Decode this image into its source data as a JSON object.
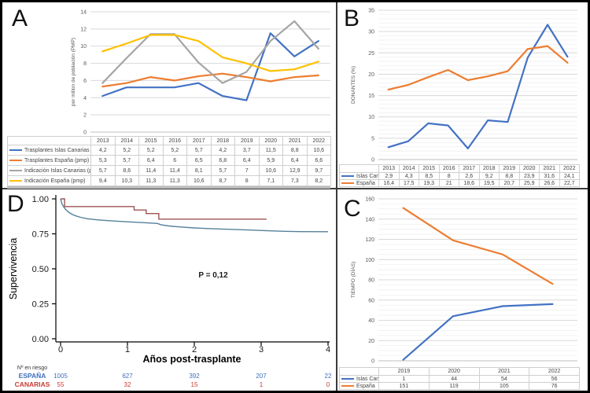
{
  "figure": {
    "panel_labels": {
      "a": "A",
      "b": "B",
      "c": "C",
      "d": "D"
    }
  },
  "colors": {
    "excel_blue": "#4472C4",
    "excel_orange": "#ED7D31",
    "excel_gray": "#A5A5A5",
    "excel_yellow": "#FFC000",
    "km_blue_curve": "#55809C",
    "km_red_curve": "#9D5353",
    "km_blue_label": "#3F6FBA",
    "km_red_label": "#CB3B31"
  },
  "chart_data": [
    {
      "id": "a",
      "type": "line",
      "title": "",
      "xlabel": "",
      "ylabel": "por millon de población (PMP)",
      "categories": [
        "2013",
        "2014",
        "2015",
        "2016",
        "2017",
        "2018",
        "2019",
        "2020",
        "2021",
        "2022"
      ],
      "ylim": [
        0,
        14
      ],
      "yticks": [
        0,
        2,
        4,
        6,
        8,
        10,
        12,
        14
      ],
      "grid": true,
      "legend_position": "table-left",
      "series": [
        {
          "name": "Trasplantes Islas Canarias (pmp)",
          "color": "#4472C4",
          "values": [
            4.2,
            5.2,
            5.2,
            5.2,
            5.7,
            4.2,
            3.7,
            11.5,
            8.8,
            10.6
          ]
        },
        {
          "name": "Trasplantes España (pmp)",
          "color": "#ED7D31",
          "values": [
            5.3,
            5.7,
            6.4,
            6,
            6.5,
            6.8,
            6.4,
            5.9,
            6.4,
            6.6
          ]
        },
        {
          "name": "Indicación Islas Canarias (pmp)",
          "color": "#A5A5A5",
          "values": [
            5.7,
            8.6,
            11.4,
            11.4,
            8.1,
            5.7,
            7,
            10.6,
            12.9,
            9.7
          ]
        },
        {
          "name": "Indicación España (pmp)",
          "color": "#FFC000",
          "values": [
            9.4,
            10.3,
            11.3,
            11.3,
            10.6,
            8.7,
            8,
            7.1,
            7.3,
            8.2
          ]
        }
      ]
    },
    {
      "id": "b",
      "type": "line",
      "title": "",
      "xlabel": "",
      "ylabel": "DONANTES (%)",
      "categories": [
        "2013",
        "2014",
        "2015",
        "2016",
        "2017",
        "2018",
        "2019",
        "2020",
        "2021",
        "2022"
      ],
      "ylim": [
        0,
        35
      ],
      "yticks": [
        0,
        5,
        10,
        15,
        20,
        25,
        30,
        35
      ],
      "minor_step": 1,
      "grid": true,
      "legend_position": "table-left",
      "series": [
        {
          "name": "Islas Canarias",
          "color": "#4472C4",
          "values": [
            2.9,
            4.3,
            8.5,
            8,
            2.6,
            9.2,
            8.8,
            23.9,
            31.6,
            24.1
          ]
        },
        {
          "name": "España",
          "color": "#ED7D31",
          "values": [
            16.4,
            17.5,
            19.3,
            21,
            18.6,
            19.5,
            20.7,
            25.9,
            26.6,
            22.7
          ]
        }
      ]
    },
    {
      "id": "c",
      "type": "line",
      "title": "",
      "xlabel": "",
      "ylabel": "TIEMPO (DÍAS)",
      "categories": [
        "2019",
        "2020",
        "2021",
        "2022"
      ],
      "ylim": [
        0,
        160
      ],
      "yticks": [
        0,
        20,
        40,
        60,
        80,
        100,
        120,
        140,
        160
      ],
      "minor_step": 5,
      "grid": true,
      "legend_position": "table-left",
      "series": [
        {
          "name": "Islas Canarias",
          "color": "#4472C4",
          "values": [
            1,
            44,
            54,
            56
          ]
        },
        {
          "name": "España",
          "color": "#ED7D31",
          "values": [
            151,
            119,
            105,
            76
          ]
        }
      ]
    },
    {
      "id": "d",
      "type": "line",
      "subtype": "kaplan-meier",
      "title": "",
      "xlabel": "Años post-trasplante",
      "ylabel": "Supervivencia",
      "xlim": [
        0,
        4
      ],
      "ylim": [
        0,
        1
      ],
      "xticks": [
        0,
        1,
        2,
        3,
        4
      ],
      "ytick_labels": [
        "0.00",
        "0.25",
        "0.50",
        "0.75",
        "1.00"
      ],
      "annotation": "P = 0,12",
      "grid": false,
      "series": [
        {
          "name": "ESPAÑA",
          "color": "#55809C",
          "points": [
            [
              0,
              1
            ],
            [
              0.02,
              0.965
            ],
            [
              0.05,
              0.94
            ],
            [
              0.08,
              0.922
            ],
            [
              0.12,
              0.905
            ],
            [
              0.17,
              0.89
            ],
            [
              0.23,
              0.878
            ],
            [
              0.3,
              0.868
            ],
            [
              0.4,
              0.858
            ],
            [
              0.55,
              0.85
            ],
            [
              0.75,
              0.843
            ],
            [
              1,
              0.836
            ],
            [
              1.25,
              0.83
            ],
            [
              1.45,
              0.824
            ],
            [
              1.5,
              0.815
            ],
            [
              1.62,
              0.806
            ],
            [
              1.8,
              0.799
            ],
            [
              2,
              0.792
            ],
            [
              2.25,
              0.787
            ],
            [
              2.55,
              0.782
            ],
            [
              2.85,
              0.777
            ],
            [
              3.1,
              0.772
            ],
            [
              3.35,
              0.768
            ],
            [
              3.6,
              0.766
            ],
            [
              4,
              0.765
            ]
          ]
        },
        {
          "name": "CANARIAS",
          "color": "#9D5353",
          "points": [
            [
              0,
              1
            ],
            [
              0.06,
              1
            ],
            [
              0.06,
              0.945
            ],
            [
              1.1,
              0.945
            ],
            [
              1.1,
              0.92
            ],
            [
              1.28,
              0.92
            ],
            [
              1.28,
              0.895
            ],
            [
              1.47,
              0.895
            ],
            [
              1.47,
              0.855
            ],
            [
              3.08,
              0.855
            ]
          ]
        }
      ],
      "risk_table": {
        "title": "Nº en riesgo",
        "rows": [
          {
            "name": "ESPAÑA",
            "color": "#3F6FBA",
            "values": [
              "1005",
              "627",
              "392",
              "207",
              "22"
            ]
          },
          {
            "name": "CANARIAS",
            "color": "#CB3B31",
            "values": [
              "55",
              "32",
              "15",
              "1",
              "0"
            ]
          }
        ]
      }
    }
  ]
}
